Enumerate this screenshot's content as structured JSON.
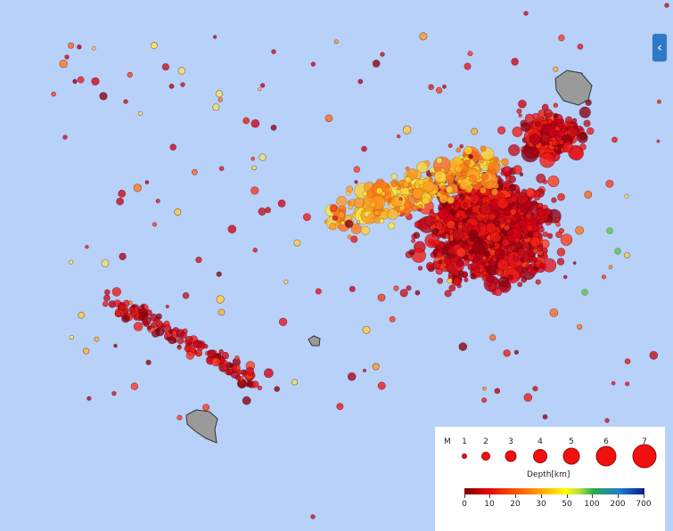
{
  "colors": {
    "sea": "#b8d1f9",
    "island_fill": "#9a9a9a",
    "legend_dot": "#f01010"
  },
  "map": {
    "side_toggle_icon": "chevron-left-icon"
  },
  "legend": {
    "magnitude_label": "M",
    "magnitudes": [
      "1",
      "2",
      "3",
      "4",
      "5",
      "6",
      "7"
    ],
    "depth_title": "Depth[km]",
    "depth_ticks": [
      "0",
      "10",
      "20",
      "30",
      "50",
      "100",
      "200",
      "700"
    ]
  }
}
